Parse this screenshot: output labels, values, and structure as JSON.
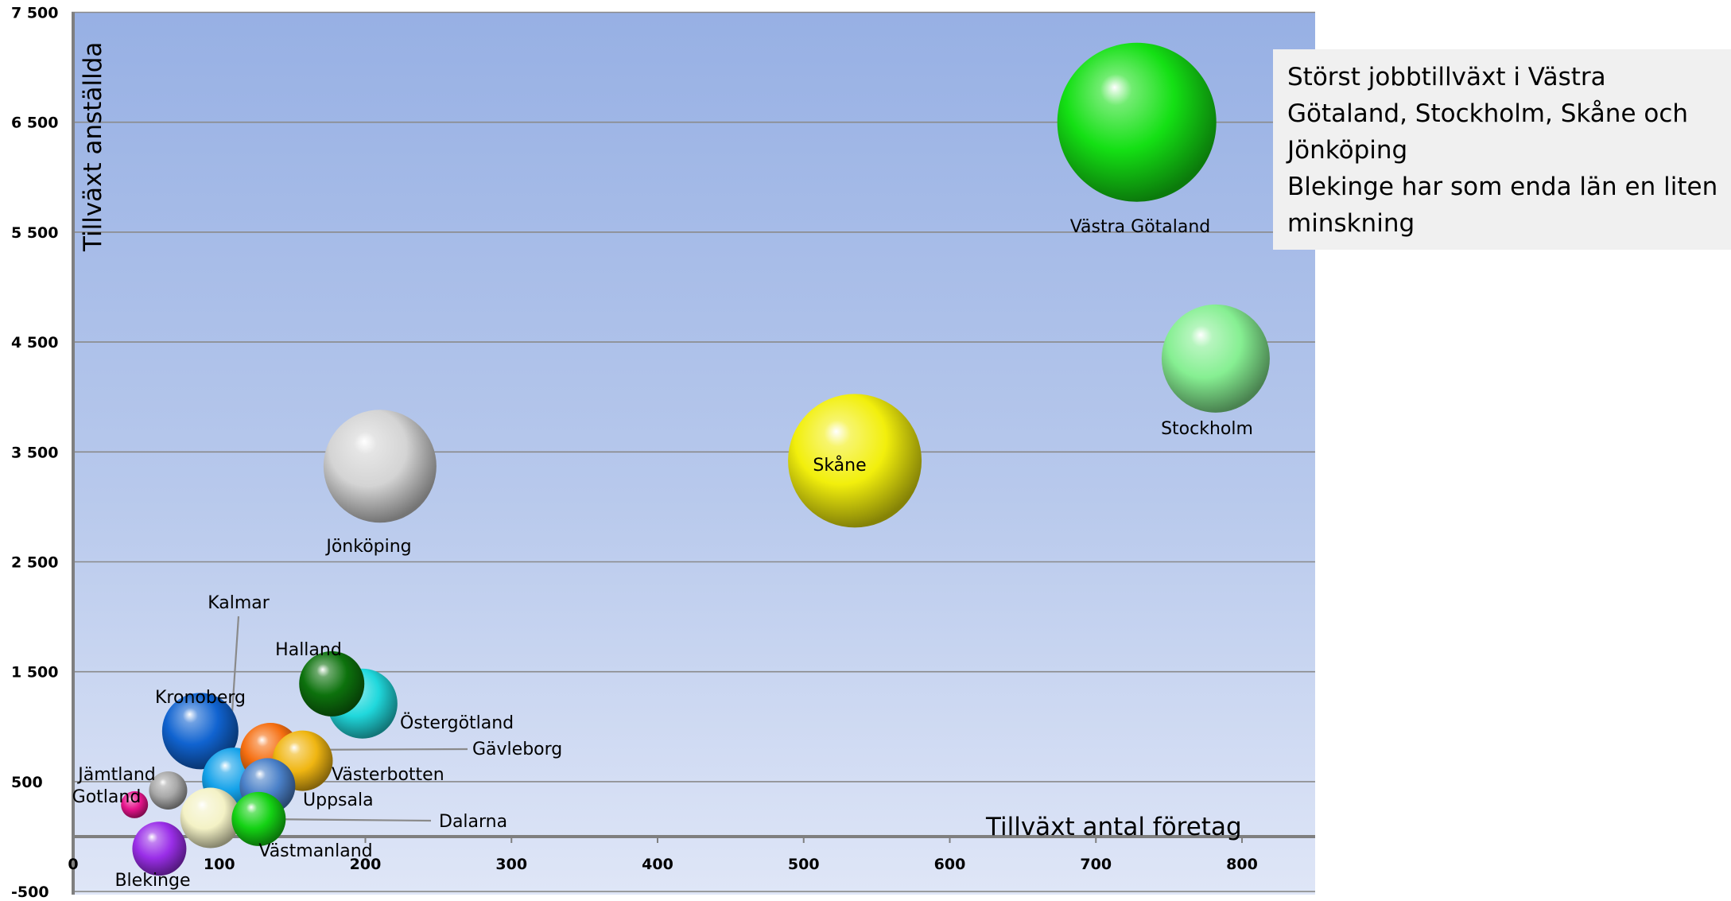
{
  "chart_data": {
    "type": "bubble",
    "title": "",
    "xlabel": "Tillväxt antal företag",
    "ylabel": "Tillväxt anställda",
    "xlim": [
      0,
      850
    ],
    "ylim": [
      -500,
      7500
    ],
    "xticks": [
      {
        "value": 0,
        "label": "0"
      },
      {
        "value": 100,
        "label": "100"
      },
      {
        "value": 200,
        "label": "200"
      },
      {
        "value": 300,
        "label": "300"
      },
      {
        "value": 400,
        "label": "400"
      },
      {
        "value": 500,
        "label": "500"
      },
      {
        "value": 600,
        "label": "600"
      },
      {
        "value": 700,
        "label": "700"
      },
      {
        "value": 800,
        "label": "800"
      }
    ],
    "yticks": [
      {
        "value": 7500,
        "label": "7 500"
      },
      {
        "value": 6500,
        "label": "6 500"
      },
      {
        "value": 5500,
        "label": "5 500"
      },
      {
        "value": 4500,
        "label": "4 500"
      },
      {
        "value": 3500,
        "label": "3 500"
      },
      {
        "value": 2500,
        "label": "2 500"
      },
      {
        "value": 1500,
        "label": "1 500"
      },
      {
        "value": 500,
        "label": "500"
      },
      {
        "value": -500,
        "label": "-500"
      }
    ],
    "grid": true,
    "legend": "none",
    "series": [
      {
        "name": "Västra Götaland",
        "x": 728,
        "y": 6500,
        "size": 100,
        "color": "#14e014"
      },
      {
        "name": "Stockholm",
        "x": 782,
        "y": 4350,
        "size": 68,
        "color": "#86ef92"
      },
      {
        "name": "Skåne",
        "x": 535,
        "y": 3420,
        "size": 84,
        "color": "#f2ef0c"
      },
      {
        "name": "Jönköping",
        "x": 210,
        "y": 3370,
        "size": 71,
        "color": "#d4d4d4"
      },
      {
        "name": "Halland",
        "x": 177,
        "y": 1390,
        "size": 41,
        "color": "#0d720d"
      },
      {
        "name": "Östergötland",
        "x": 198,
        "y": 1210,
        "size": 44,
        "color": "#20d8dc"
      },
      {
        "name": "Kronoberg",
        "x": 87,
        "y": 960,
        "size": 48,
        "color": "#1063d0"
      },
      {
        "name": "Gävleborg",
        "x": 135,
        "y": 760,
        "size": 38,
        "color": "#f56e10"
      },
      {
        "name": "Västerbotten",
        "x": 157,
        "y": 690,
        "size": 38,
        "color": "#f0b612"
      },
      {
        "name": "Kalmar",
        "x": 110,
        "y": 520,
        "size": 40,
        "color": "#14a2ea"
      },
      {
        "name": "Uppsala",
        "x": 133,
        "y": 460,
        "size": 35,
        "color": "#4a80c8"
      },
      {
        "name": "Jämtland",
        "x": 65,
        "y": 420,
        "size": 24,
        "color": "#a8a8a8"
      },
      {
        "name": "Gotland",
        "x": 42,
        "y": 290,
        "size": 17,
        "color": "#e6148c"
      },
      {
        "name": "Västmanland",
        "x": 127,
        "y": 160,
        "size": 34,
        "color": "#14d214"
      },
      {
        "name": "Dalarna",
        "x": 94,
        "y": 170,
        "size": 38,
        "color": "#f4f2c6"
      },
      {
        "name": "Blekinge",
        "x": 59,
        "y": -110,
        "size": 34,
        "color": "#9a2ee8"
      }
    ],
    "annotation": {
      "lines": [
        "Störst jobbtillväxt  i Västra",
        "Götaland, Stockholm, Skåne och",
        "Jönköping",
        "Blekinge har som enda län en liten",
        "minskning"
      ]
    }
  }
}
